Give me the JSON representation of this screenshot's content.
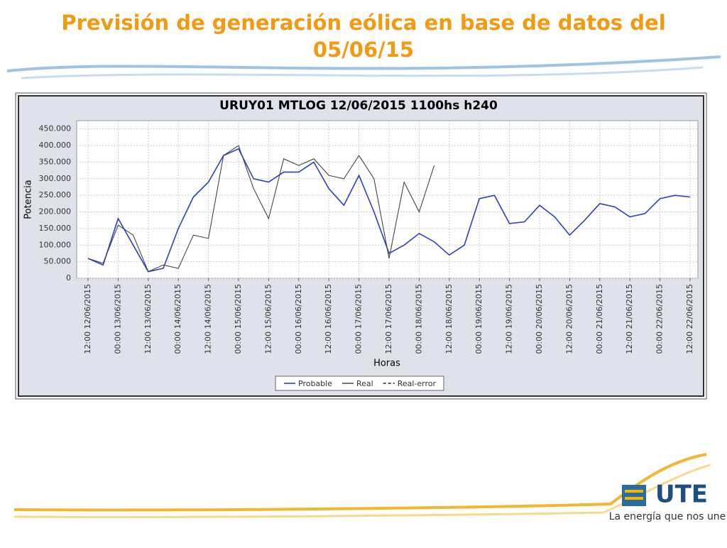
{
  "slide": {
    "title": "Previsión de generación eólica en base de datos del 05/06/15",
    "logo": "UTE",
    "tagline": "La energía que nos une"
  },
  "chart_data": {
    "type": "line",
    "title": "URUY01  MTLOG  12/06/2015  1100hs   h240",
    "ylabel": "Potencia",
    "xlabel": "Horas",
    "x": [
      "12:00 12/06/2015",
      "18:00 12/06/2015",
      "00:00 13/06/2015",
      "06:00 13/06/2015",
      "12:00 13/06/2015",
      "18:00 13/06/2015",
      "00:00 14/06/2015",
      "06:00 14/06/2015",
      "12:00 14/06/2015",
      "18:00 14/06/2015",
      "00:00 15/06/2015",
      "06:00 15/06/2015",
      "12:00 15/06/2015",
      "18:00 15/06/2015",
      "00:00 16/06/2015",
      "06:00 16/06/2015",
      "12:00 16/06/2015",
      "18:00 16/06/2015",
      "00:00 17/06/2015",
      "06:00 17/06/2015",
      "12:00 17/06/2015",
      "18:00 17/06/2015",
      "00:00 18/06/2015",
      "06:00 18/06/2015",
      "12:00 18/06/2015",
      "18:00 18/06/2015",
      "00:00 19/06/2015",
      "06:00 19/06/2015",
      "12:00 19/06/2015",
      "18:00 19/06/2015",
      "00:00 20/06/2015",
      "06:00 20/06/2015",
      "12:00 20/06/2015",
      "18:00 20/06/2015",
      "00:00 21/06/2015",
      "06:00 21/06/2015",
      "12:00 21/06/2015",
      "18:00 21/06/2015",
      "00:00 22/06/2015",
      "06:00 22/06/2015",
      "12:00 22/06/2015"
    ],
    "xticks": [
      "12:00 12/06/2015",
      "00:00 13/06/2015",
      "12:00 13/06/2015",
      "00:00 14/06/2015",
      "12:00 14/06/2015",
      "00:00 15/06/2015",
      "12:00 15/06/2015",
      "00:00 16/06/2015",
      "12:00 16/06/2015",
      "00:00 17/06/2015",
      "12:00 17/06/2015",
      "00:00 18/06/2015",
      "12:00 18/06/2015",
      "00:00 19/06/2015",
      "12:00 19/06/2015",
      "00:00 20/06/2015",
      "12:00 20/06/2015",
      "00:00 21/06/2015",
      "12:00 21/06/2015",
      "00:00 22/06/2015",
      "12:00 22/06/2015"
    ],
    "ylim": [
      0,
      475000
    ],
    "yticks": [
      0,
      {
        "value": 50000,
        "label": "50.000"
      },
      {
        "value": 100000,
        "label": "100.000"
      },
      {
        "value": 150000,
        "label": "150.000"
      },
      {
        "value": 200000,
        "label": "200.000"
      },
      {
        "value": 250000,
        "label": "250.000"
      },
      {
        "value": 300000,
        "label": "300.000"
      },
      {
        "value": 350000,
        "label": "350.000"
      },
      {
        "value": 400000,
        "label": "400.000"
      },
      {
        "value": 450000,
        "label": "450.000"
      }
    ],
    "grid": true,
    "series": [
      {
        "name": "Probable",
        "color": "#2b3fc8",
        "values": [
          60000,
          40000,
          180000,
          100000,
          20000,
          30000,
          150000,
          245000,
          290000,
          370000,
          390000,
          300000,
          290000,
          320000,
          320000,
          350000,
          270000,
          220000,
          310000,
          200000,
          75000,
          100000,
          135000,
          110000,
          70000,
          100000,
          240000,
          250000,
          165000,
          170000,
          220000,
          185000,
          130000,
          175000,
          225000,
          215000,
          185000,
          195000,
          240000,
          250000,
          245000
        ]
      },
      {
        "name": "Real",
        "color": "#444444",
        "values": [
          60000,
          45000,
          160000,
          130000,
          20000,
          40000,
          30000,
          130000,
          120000,
          370000,
          400000,
          270000,
          180000,
          360000,
          340000,
          360000,
          310000,
          300000,
          370000,
          300000,
          60000,
          290000,
          200000,
          340000,
          null,
          null,
          null,
          null,
          null,
          null,
          null,
          null,
          null,
          null,
          null,
          null,
          null,
          null,
          null,
          null,
          null
        ]
      },
      {
        "name": "Real-error",
        "color": "#222222",
        "dashed": true,
        "values": [
          null,
          null,
          null,
          null,
          null,
          null,
          null,
          null,
          null,
          null,
          null,
          null,
          null,
          null,
          null,
          null,
          null,
          null,
          null,
          null,
          null,
          null,
          null,
          null,
          null,
          null,
          null,
          null,
          null,
          null,
          null,
          null,
          null,
          null,
          null,
          null,
          null,
          null,
          null,
          null,
          null
        ]
      }
    ]
  }
}
